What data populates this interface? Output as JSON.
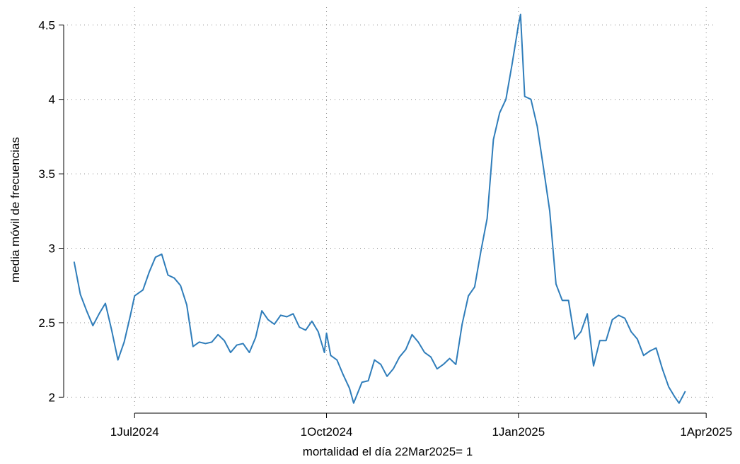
{
  "chart_data": {
    "type": "line",
    "xlabel": "mortalidad el día 22Mar2025= 1",
    "ylabel": "media móvil de frecuencias",
    "color": "#2f7dba",
    "grid": true,
    "x": [
      "2024-06-02",
      "2024-06-05",
      "2024-06-08",
      "2024-06-11",
      "2024-06-14",
      "2024-06-17",
      "2024-06-20",
      "2024-06-23",
      "2024-06-26",
      "2024-06-29",
      "2024-07-01",
      "2024-07-05",
      "2024-07-08",
      "2024-07-11",
      "2024-07-14",
      "2024-07-17",
      "2024-07-20",
      "2024-07-23",
      "2024-07-26",
      "2024-07-29",
      "2024-08-01",
      "2024-08-04",
      "2024-08-07",
      "2024-08-10",
      "2024-08-13",
      "2024-08-16",
      "2024-08-19",
      "2024-08-22",
      "2024-08-25",
      "2024-08-28",
      "2024-08-31",
      "2024-09-03",
      "2024-09-06",
      "2024-09-09",
      "2024-09-12",
      "2024-09-15",
      "2024-09-18",
      "2024-09-21",
      "2024-09-24",
      "2024-09-27",
      "2024-09-30",
      "2024-10-01",
      "2024-10-03",
      "2024-10-06",
      "2024-10-09",
      "2024-10-12",
      "2024-10-14",
      "2024-10-18",
      "2024-10-21",
      "2024-10-24",
      "2024-10-27",
      "2024-10-30",
      "2024-11-02",
      "2024-11-05",
      "2024-11-08",
      "2024-11-11",
      "2024-11-14",
      "2024-11-17",
      "2024-11-20",
      "2024-11-23",
      "2024-11-26",
      "2024-11-29",
      "2024-12-02",
      "2024-12-05",
      "2024-12-08",
      "2024-12-11",
      "2024-12-14",
      "2024-12-17",
      "2024-12-20",
      "2024-12-23",
      "2024-12-26",
      "2024-12-29",
      "2025-01-01",
      "2025-01-02",
      "2025-01-04",
      "2025-01-07",
      "2025-01-10",
      "2025-01-13",
      "2025-01-16",
      "2025-01-19",
      "2025-01-22",
      "2025-01-25",
      "2025-01-28",
      "2025-01-31",
      "2025-02-03",
      "2025-02-06",
      "2025-02-09",
      "2025-02-12",
      "2025-02-15",
      "2025-02-18",
      "2025-02-21",
      "2025-02-24",
      "2025-02-27",
      "2025-03-02",
      "2025-03-05",
      "2025-03-08",
      "2025-03-11",
      "2025-03-14",
      "2025-03-17",
      "2025-03-19",
      "2025-03-22"
    ],
    "values": [
      2.91,
      2.69,
      2.58,
      2.48,
      2.56,
      2.63,
      2.45,
      2.25,
      2.37,
      2.55,
      2.68,
      2.72,
      2.84,
      2.94,
      2.96,
      2.82,
      2.8,
      2.75,
      2.62,
      2.34,
      2.37,
      2.36,
      2.37,
      2.42,
      2.38,
      2.3,
      2.35,
      2.36,
      2.3,
      2.4,
      2.58,
      2.52,
      2.49,
      2.55,
      2.54,
      2.56,
      2.47,
      2.45,
      2.51,
      2.44,
      2.3,
      2.43,
      2.28,
      2.25,
      2.15,
      2.06,
      1.96,
      2.1,
      2.11,
      2.25,
      2.22,
      2.14,
      2.19,
      2.27,
      2.32,
      2.42,
      2.37,
      2.3,
      2.27,
      2.19,
      2.22,
      2.26,
      2.22,
      2.49,
      2.68,
      2.74,
      2.98,
      3.2,
      3.73,
      3.91,
      4.0,
      4.24,
      4.5,
      4.57,
      4.02,
      4.0,
      3.82,
      3.54,
      3.25,
      2.76,
      2.65,
      2.65,
      2.39,
      2.44,
      2.56,
      2.21,
      2.38,
      2.38,
      2.52,
      2.55,
      2.53,
      2.44,
      2.39,
      2.28,
      2.31,
      2.33,
      2.19,
      2.07,
      2.0,
      1.96,
      2.04
    ],
    "xlim": [
      "2024-05-28",
      "2025-04-05"
    ],
    "xticks": [
      {
        "value": "2024-07-01",
        "label": "1Jul2024"
      },
      {
        "value": "2024-10-01",
        "label": "1Oct2024"
      },
      {
        "value": "2025-01-01",
        "label": "1Jan2025"
      },
      {
        "value": "2025-04-01",
        "label": "1Apr2025"
      }
    ],
    "ylim": [
      1.94,
      4.62
    ],
    "yticks": [
      2,
      2.5,
      3,
      3.5,
      4,
      4.5
    ]
  }
}
